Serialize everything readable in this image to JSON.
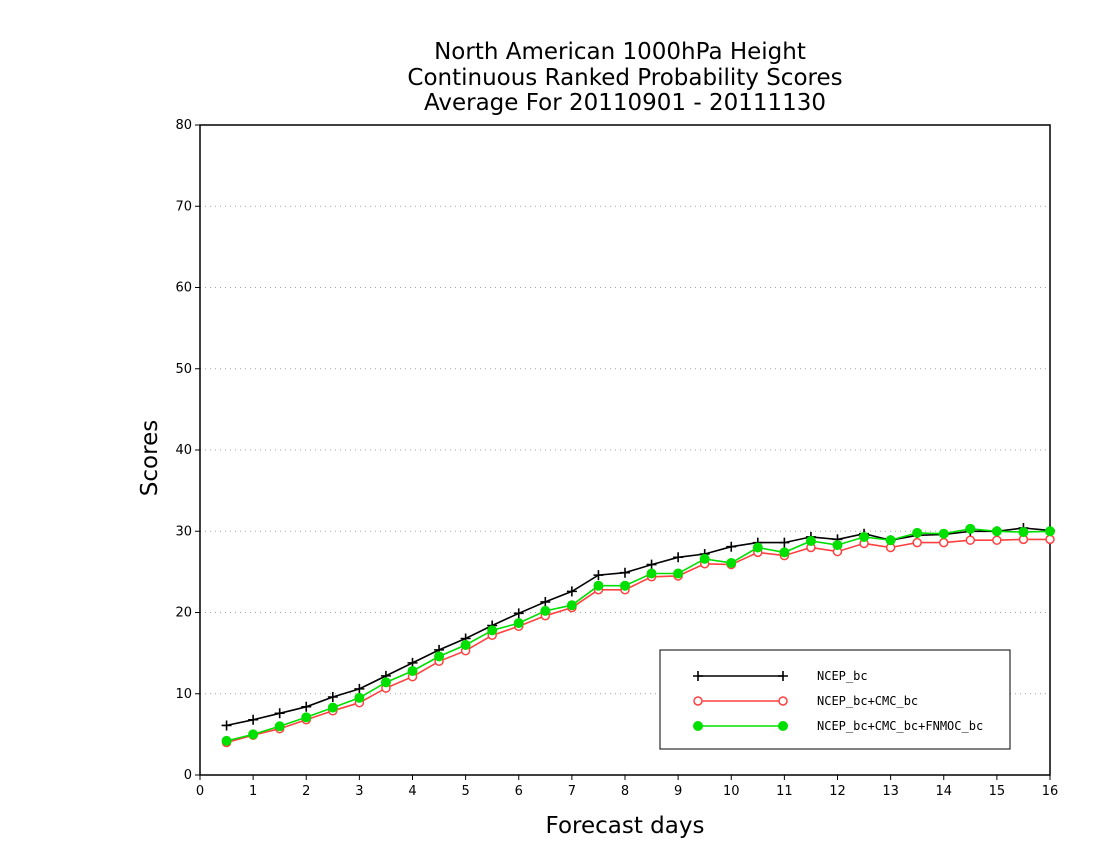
{
  "chart_data": {
    "type": "line",
    "title": [
      "North American 1000hPa Height",
      "Continuous Ranked Probability Scores",
      "Average For 20110901 - 20111130"
    ],
    "xlabel": "Forecast days",
    "ylabel": "Scores",
    "xlim": [
      0,
      16
    ],
    "ylim": [
      0,
      80
    ],
    "xticks": [
      0,
      1,
      2,
      3,
      4,
      5,
      6,
      7,
      8,
      9,
      10,
      11,
      12,
      13,
      14,
      15,
      16
    ],
    "yticks": [
      0,
      10,
      20,
      30,
      40,
      50,
      60,
      70,
      80
    ],
    "grid": "horizontal dotted",
    "legend_position": "bottom-right",
    "x": [
      0.5,
      1,
      1.5,
      2,
      2.5,
      3,
      3.5,
      4,
      4.5,
      5,
      5.5,
      6,
      6.5,
      7,
      7.5,
      8,
      8.5,
      9,
      9.5,
      10,
      10.5,
      11,
      11.5,
      12,
      12.5,
      13,
      13.5,
      14,
      14.5,
      15,
      15.5,
      16
    ],
    "series": [
      {
        "name": "NCEP_bc",
        "color": "#000000",
        "marker": "plus",
        "values": [
          6.1,
          6.8,
          7.6,
          8.4,
          9.6,
          10.6,
          12.2,
          13.8,
          15.4,
          16.8,
          18.4,
          19.9,
          21.3,
          22.6,
          24.6,
          24.9,
          25.9,
          26.8,
          27.2,
          28.1,
          28.6,
          28.6,
          29.3,
          29.0,
          29.7,
          28.9,
          29.5,
          29.6,
          30.0,
          30.0,
          30.4,
          30.1
        ]
      },
      {
        "name": "NCEP_bc+CMC_bc",
        "color": "#ff4040",
        "marker": "open-circle",
        "values": [
          4.0,
          4.9,
          5.7,
          6.8,
          7.9,
          8.9,
          10.7,
          12.1,
          14.0,
          15.3,
          17.2,
          18.3,
          19.6,
          20.6,
          22.8,
          22.8,
          24.4,
          24.5,
          26.0,
          25.9,
          27.4,
          27.0,
          28.0,
          27.5,
          28.5,
          28.0,
          28.6,
          28.6,
          28.9,
          28.9,
          29.0,
          29.0
        ]
      },
      {
        "name": "NCEP_bc+CMC_bc+FNMOC_bc",
        "color": "#00e000",
        "marker": "filled-circle",
        "values": [
          4.2,
          5.0,
          6.0,
          7.1,
          8.3,
          9.5,
          11.4,
          12.8,
          14.6,
          16.0,
          17.8,
          18.7,
          20.2,
          20.9,
          23.3,
          23.3,
          24.8,
          24.8,
          26.6,
          26.1,
          28.0,
          27.4,
          28.8,
          28.3,
          29.3,
          28.9,
          29.8,
          29.7,
          30.3,
          30.0,
          29.9,
          30.0
        ]
      }
    ]
  }
}
